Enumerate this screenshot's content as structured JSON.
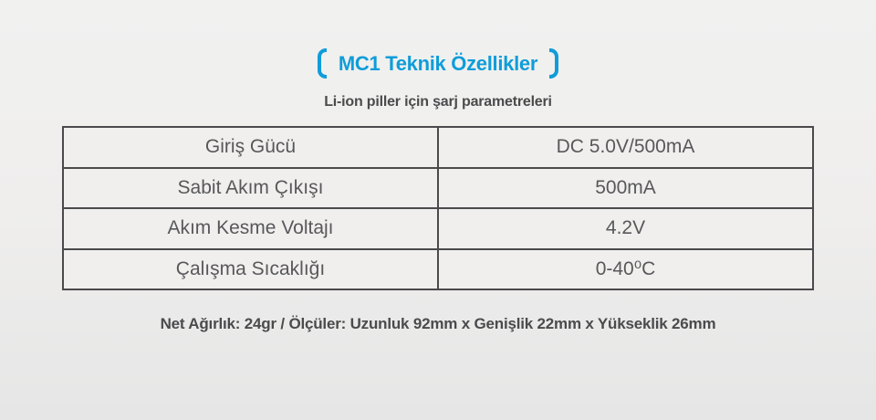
{
  "header": {
    "title": "MC1 Teknik Özellikler",
    "subtitle": "Li-ion piller için şarj parametreleri"
  },
  "table": {
    "rows": [
      {
        "label": "Giriş Gücü",
        "value": "DC 5.0V/500mA"
      },
      {
        "label": "Sabit Akım Çıkışı",
        "value": "500mA"
      },
      {
        "label": "Akım Kesme Voltajı",
        "value": "4.2V"
      },
      {
        "label": "Çalışma Sıcaklığı",
        "value": "0-40⁰C"
      }
    ]
  },
  "footer": {
    "note": "Net Ağırlık: 24gr / Ölçüler: Uzunluk 92mm x Genişlik 22mm x Yükseklik 26mm"
  },
  "colors": {
    "accent_blue": "#0f9dd9",
    "text_gray": "#58585b",
    "border_gray": "#4a4a4c",
    "background_top": "#f1f1f0",
    "background_bottom": "#e6e6e6",
    "cell_background": "#f0efee"
  }
}
